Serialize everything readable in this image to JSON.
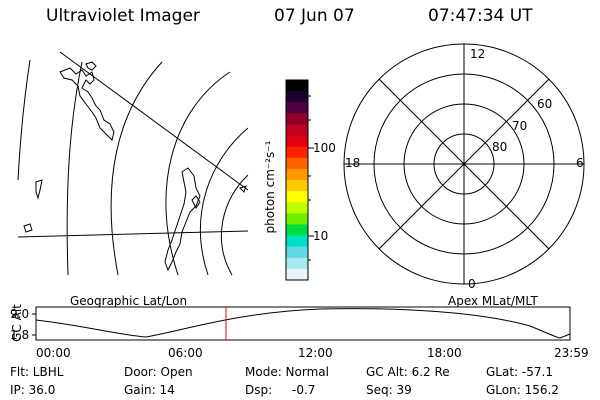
{
  "header": {
    "title": "Ultraviolet Imager",
    "date": "07 Jun 07",
    "time": "07:47:34 UT"
  },
  "colorbar": {
    "unit_label": "photon cm⁻²s⁻¹",
    "ticks": [
      "100",
      "10"
    ],
    "colors": [
      "#000000",
      "#1a0030",
      "#500040",
      "#90002a",
      "#c00020",
      "#e00010",
      "#ff2000",
      "#ff6000",
      "#ff9800",
      "#ffc800",
      "#ffff00",
      "#c0ff00",
      "#70ee00",
      "#00dd40",
      "#00e0c8",
      "#60d8e8",
      "#a8e8f0",
      "#e8f4f8"
    ]
  },
  "map_left": {
    "caption": "Geographic Lat/Lon"
  },
  "polar": {
    "caption": "Apex MLat/MLT",
    "hour_labels": [
      "12",
      "18",
      "6",
      "0"
    ],
    "lat_labels": [
      "60",
      "70",
      "80"
    ]
  },
  "timeline": {
    "ylabel": "GC Alt",
    "ytick_high": "9.0",
    "ytick_low": "1.8",
    "xticks": [
      "00:00",
      "06:00",
      "12:00",
      "18:00",
      "23:59"
    ],
    "current_marker_color": "#ff0000"
  },
  "status": {
    "flt": "Flt: LBHL",
    "ip": "IP: 36.0",
    "door": "Door: Open",
    "gain": "Gain: 14",
    "mode": "Mode: Normal",
    "dsp": "Dsp:",
    "dsp_value": "-0.7",
    "gc_alt": "GC Alt: 6.2 Re",
    "seq": "Seq: 39",
    "glat": "GLat: -57.1",
    "glon": "GLon: 156.2"
  }
}
